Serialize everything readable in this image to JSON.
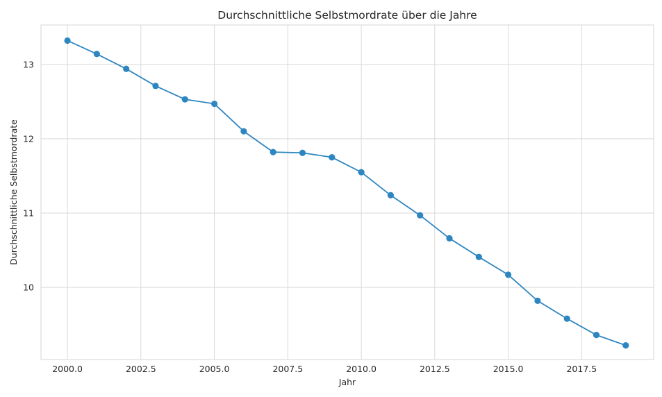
{
  "chart_data": {
    "type": "line",
    "title": "Durchschnittliche Selbstmordrate über die Jahre",
    "xlabel": "Jahr",
    "ylabel": "Durchschnittliche Selbstmordrate",
    "xlim": [
      1999.1,
      2019.95
    ],
    "ylim": [
      9.03,
      13.53
    ],
    "xticks": [
      2000.0,
      2002.5,
      2005.0,
      2007.5,
      2010.0,
      2012.5,
      2015.0,
      2017.5
    ],
    "xtick_labels": [
      "2000.0",
      "2002.5",
      "2005.0",
      "2007.5",
      "2010.0",
      "2012.5",
      "2015.0",
      "2017.5"
    ],
    "yticks": [
      10,
      11,
      12,
      13
    ],
    "ytick_labels": [
      "10",
      "11",
      "12",
      "13"
    ],
    "grid": true,
    "legend": "none",
    "color": "#2e86c1",
    "series": [
      {
        "x": [
          2000,
          2001,
          2002,
          2003,
          2004,
          2005,
          2006,
          2007,
          2008,
          2009,
          2010,
          2011,
          2012,
          2013,
          2014,
          2015,
          2016,
          2017,
          2018,
          2019
        ],
        "y": [
          13.32,
          13.14,
          12.94,
          12.71,
          12.53,
          12.47,
          12.1,
          11.82,
          11.81,
          11.75,
          11.55,
          11.24,
          10.97,
          10.66,
          10.41,
          10.17,
          9.82,
          9.58,
          9.36,
          9.22
        ]
      }
    ]
  }
}
